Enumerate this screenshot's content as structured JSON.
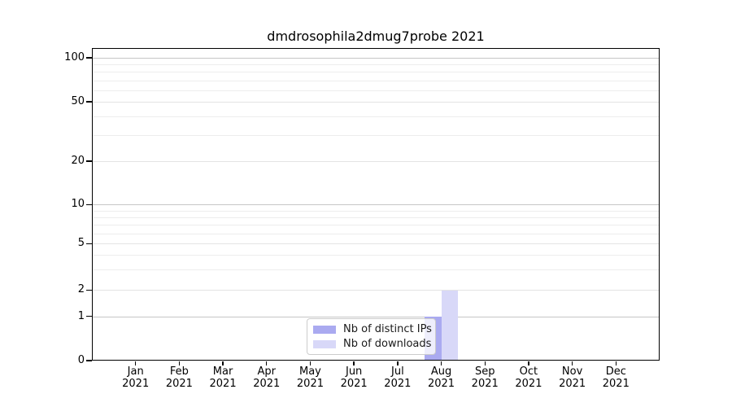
{
  "chart_data": {
    "type": "bar",
    "title": "dmdrosophila2dmug7probe 2021",
    "categories": [
      "Jan 2021",
      "Feb 2021",
      "Mar 2021",
      "Apr 2021",
      "May 2021",
      "Jun 2021",
      "Jul 2021",
      "Aug 2021",
      "Sep 2021",
      "Oct 2021",
      "Nov 2021",
      "Dec 2021"
    ],
    "series": [
      {
        "name": "Nb of distinct IPs",
        "color": "#aaaaf0",
        "values": [
          0,
          0,
          0,
          0,
          0,
          0,
          0,
          1,
          0,
          0,
          0,
          0
        ]
      },
      {
        "name": "Nb of downloads",
        "color": "#d8d8f8",
        "values": [
          0,
          0,
          0,
          0,
          0,
          0,
          0,
          2,
          0,
          0,
          0,
          0
        ]
      }
    ],
    "xlabel": "",
    "ylabel": "",
    "yscale": "symlog",
    "ylim": [
      0,
      100
    ],
    "yticks": [
      {
        "value": 0,
        "frac": 1.0
      },
      {
        "value": 1,
        "frac": 0.8581
      },
      {
        "value": 2,
        "frac": 0.7747
      },
      {
        "value": 5,
        "frac": 0.6263
      },
      {
        "value": 10,
        "frac": 0.5013
      },
      {
        "value": 20,
        "frac": 0.362
      },
      {
        "value": 50,
        "frac": 0.1719
      },
      {
        "value": 100,
        "frac": 0.0313
      }
    ],
    "minor_gridline_values": [
      3,
      4,
      6,
      7,
      8,
      9,
      30,
      40,
      60,
      70,
      80,
      90
    ],
    "decade_values": [
      1,
      10,
      100
    ],
    "grid": "horizontal-only",
    "legend": {
      "position": "inside lower-center",
      "labels": [
        "Nb of distinct IPs",
        "Nb of downloads"
      ]
    },
    "colors": {
      "background": "#ffffff",
      "spine": "#000000",
      "text": "#000000",
      "decade_grid": "#c6c6c6",
      "minor_grid": "#ededed",
      "legend_border": "#cccccc",
      "series_ips": "#aaaaf0",
      "series_downloads": "#d8d8f8"
    }
  }
}
